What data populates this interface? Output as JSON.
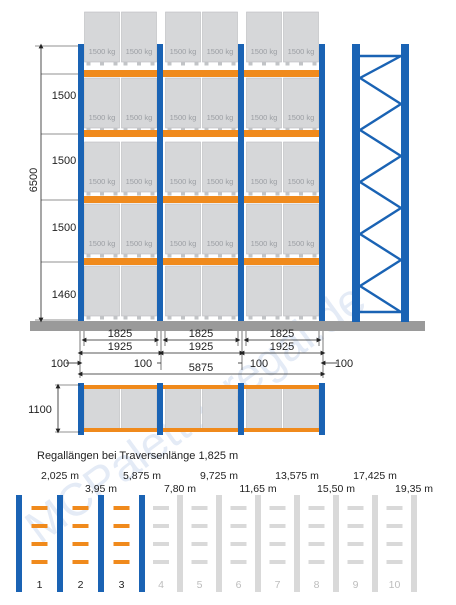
{
  "colors": {
    "upright": "#1a63b4",
    "beam": "#f08a1c",
    "pallet_box": "#d6d7d9",
    "pallet_edge": "#b9bbbe",
    "floor": "#9a9a9a",
    "ghost": "#d9d9d9",
    "ghost_text": "#bdbdbd",
    "watermark": "#cfdbf0"
  },
  "pallet_label": "1500 kg",
  "level_heights": [
    "1500",
    "1500",
    "1500",
    "1460"
  ],
  "total_height": "6500",
  "bay_inner": [
    "1825",
    "1825",
    "1825"
  ],
  "bay_outer": [
    "1925",
    "1925",
    "1925"
  ],
  "gaps": [
    "100",
    "100",
    "100",
    "100"
  ],
  "total_length": "5875",
  "depth": "1100",
  "caption": "Regallängen bei Traversenlänge 1,825 m",
  "lengths": [
    "2,025 m",
    "3,95 m",
    "5,875 m",
    "7,80 m",
    "9,725 m",
    "11,65 m",
    "13,575 m",
    "15,50 m",
    "17,425 m",
    "19,35 m"
  ],
  "bay_numbers": [
    "1",
    "2",
    "3",
    "4",
    "5",
    "6",
    "7",
    "8",
    "9",
    "10"
  ],
  "active_bays": 3,
  "watermark": "MCPalettenregal.de"
}
